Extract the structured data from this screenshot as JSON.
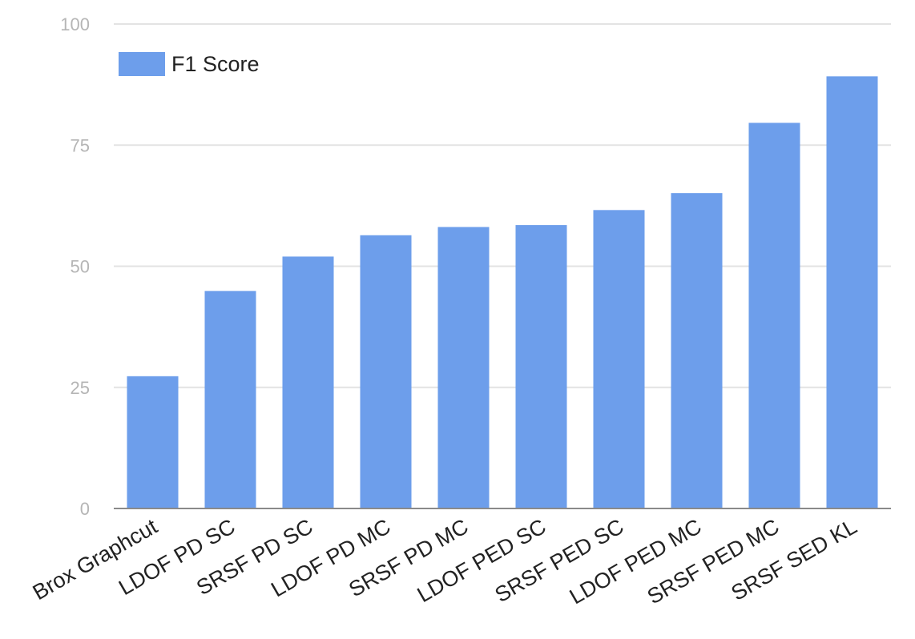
{
  "chart_data": {
    "type": "bar",
    "categories": [
      "Brox Graphcut",
      "LDOF PD SC",
      "SRSF PD SC",
      "LDOF PD MC",
      "SRSF PD MC",
      "LDOF PED SC",
      "SRSF PED SC",
      "LDOF PED MC",
      "SRSF PED MC",
      "SRSF SED KL"
    ],
    "series": [
      {
        "name": "F1 Score",
        "values": [
          27.3,
          44.9,
          52.0,
          56.4,
          58.1,
          58.5,
          61.6,
          65.1,
          79.6,
          89.2
        ]
      }
    ],
    "ylim": [
      0,
      100
    ],
    "yticks": [
      0,
      25,
      50,
      75,
      100
    ],
    "grid": true,
    "legend": "top-left",
    "colors": {
      "bar": "#6d9eeb"
    }
  }
}
